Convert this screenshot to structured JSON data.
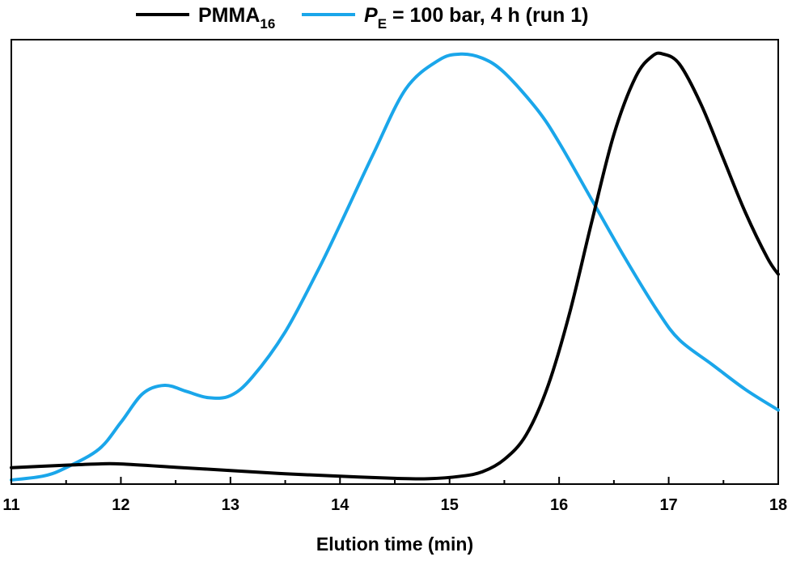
{
  "chart_data": {
    "type": "line",
    "title": "",
    "xlabel": "Elution time (min)",
    "ylabel": "",
    "xlim": [
      11,
      18
    ],
    "ylim": [
      0,
      1.08
    ],
    "x_ticks": [
      11,
      12,
      13,
      14,
      15,
      16,
      17,
      18
    ],
    "x_tick_labels": [
      "11",
      "12",
      "13",
      "14",
      "15",
      "16",
      "17",
      "18"
    ],
    "y_ticks_shown": false,
    "grid": false,
    "legend_position": "top-center, outside plot",
    "series": [
      {
        "name": "PMMA",
        "name_subscript": "16",
        "color": "#000000",
        "x": [
          11.0,
          11.5,
          11.8,
          12.0,
          12.5,
          13.0,
          13.5,
          14.0,
          14.5,
          14.8,
          15.1,
          15.3,
          15.5,
          15.7,
          15.9,
          16.1,
          16.3,
          16.5,
          16.7,
          16.85,
          16.95,
          17.1,
          17.3,
          17.5,
          17.7,
          17.9,
          18.0
        ],
        "y": [
          0.04,
          0.046,
          0.049,
          0.049,
          0.041,
          0.033,
          0.025,
          0.019,
          0.014,
          0.013,
          0.019,
          0.03,
          0.06,
          0.12,
          0.24,
          0.42,
          0.64,
          0.85,
          0.99,
          1.04,
          1.045,
          1.02,
          0.92,
          0.79,
          0.66,
          0.55,
          0.51
        ]
      },
      {
        "name_prefix": "P",
        "name_subscript": "E",
        "name": " = 100 bar, 4 h (run 1)",
        "color": "#1aa6ea",
        "x": [
          11.0,
          11.3,
          11.5,
          11.8,
          12.0,
          12.2,
          12.4,
          12.6,
          12.8,
          13.0,
          13.2,
          13.5,
          13.8,
          14.0,
          14.3,
          14.6,
          14.9,
          15.1,
          15.3,
          15.5,
          15.8,
          16.0,
          16.3,
          16.6,
          16.9,
          17.1,
          17.4,
          17.7,
          18.0
        ],
        "y": [
          0.01,
          0.02,
          0.04,
          0.085,
          0.15,
          0.22,
          0.24,
          0.225,
          0.21,
          0.215,
          0.26,
          0.37,
          0.52,
          0.63,
          0.8,
          0.96,
          1.03,
          1.045,
          1.035,
          1.0,
          0.91,
          0.83,
          0.69,
          0.55,
          0.42,
          0.35,
          0.29,
          0.23,
          0.18
        ]
      }
    ]
  }
}
